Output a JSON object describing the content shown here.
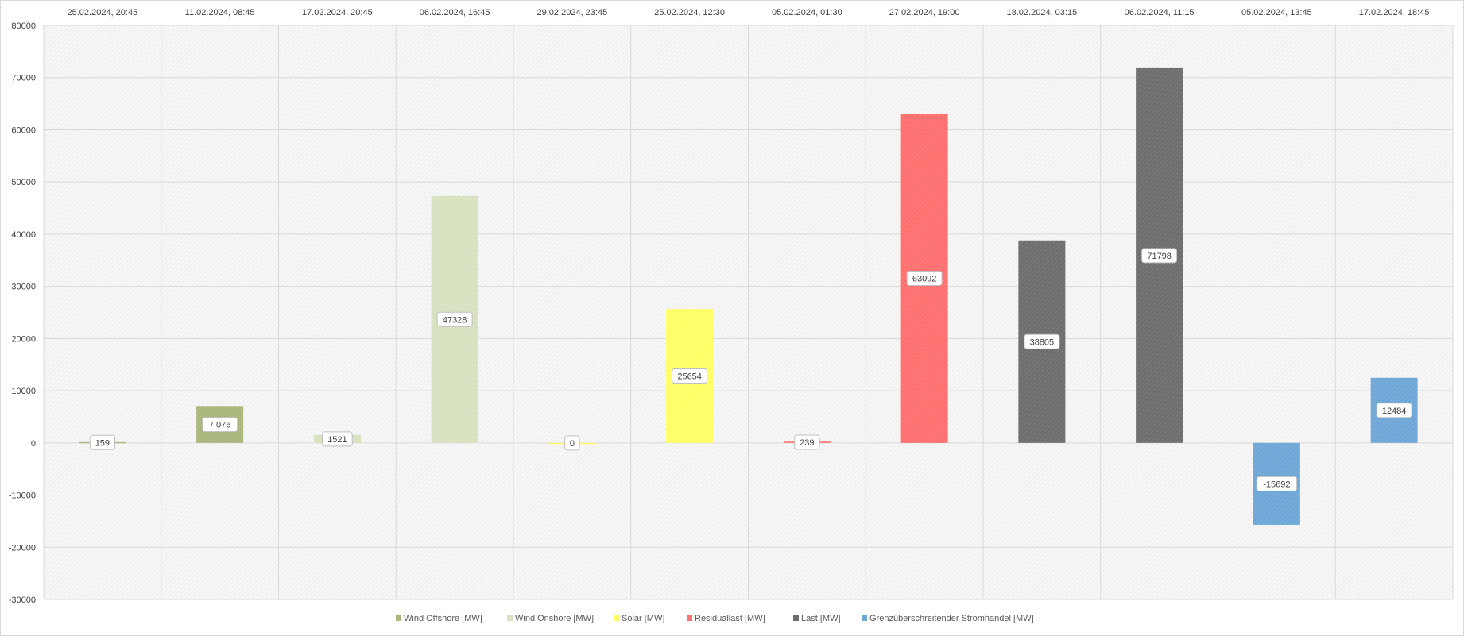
{
  "chart_data": {
    "type": "bar",
    "title": "",
    "xlabel": "",
    "ylabel": "",
    "ylim": [
      -30000,
      80000
    ],
    "ytick_step": 10000,
    "grid": true,
    "legend_position": "bottom",
    "categories": [
      "25.02.2024, 20:45",
      "11.02.2024, 08:45",
      "17.02.2024, 20:45",
      "06.02.2024, 16:45",
      "29.02.2024, 23:45",
      "25.02.2024, 12:30",
      "05.02.2024, 01:30",
      "27.02.2024, 19:00",
      "18.02.2024, 03:15",
      "06.02.2024, 11:15",
      "05.02.2024, 13:45",
      "17.02.2024, 18:45"
    ],
    "series": [
      {
        "name": "Wind Offshore [MW]",
        "color": "#a9b67c"
      },
      {
        "name": "Wind Onshore [MW]",
        "color": "#d8e2c0"
      },
      {
        "name": "Solar [MW]",
        "color": "#ffff66"
      },
      {
        "name": "Residuallast [MW]",
        "color": "#ff7070"
      },
      {
        "name": "Last [MW]",
        "color": "#6e6e6e"
      },
      {
        "name": "Grenzüberschreitender Stromhandel [MW]",
        "color": "#6fa8d6"
      }
    ],
    "points": [
      {
        "category": "25.02.2024, 20:45",
        "series": 0,
        "value": 159,
        "label": "159"
      },
      {
        "category": "11.02.2024, 08:45",
        "series": 0,
        "value": 7076,
        "label": "7.076"
      },
      {
        "category": "17.02.2024, 20:45",
        "series": 1,
        "value": 1521,
        "label": "1521"
      },
      {
        "category": "06.02.2024, 16:45",
        "series": 1,
        "value": 47328,
        "label": "47328"
      },
      {
        "category": "29.02.2024, 23:45",
        "series": 2,
        "value": 0,
        "label": "0"
      },
      {
        "category": "25.02.2024, 12:30",
        "series": 2,
        "value": 25654,
        "label": "25654"
      },
      {
        "category": "05.02.2024, 01:30",
        "series": 3,
        "value": 239,
        "label": "239"
      },
      {
        "category": "27.02.2024, 19:00",
        "series": 3,
        "value": 63092,
        "label": "63092"
      },
      {
        "category": "18.02.2024, 03:15",
        "series": 4,
        "value": 38805,
        "label": "38805"
      },
      {
        "category": "06.02.2024, 11:15",
        "series": 4,
        "value": 71798,
        "label": "71798"
      },
      {
        "category": "05.02.2024, 13:45",
        "series": 5,
        "value": -15692,
        "label": "-15692"
      },
      {
        "category": "17.02.2024, 18:45",
        "series": 5,
        "value": 12484,
        "label": "12484"
      }
    ]
  }
}
